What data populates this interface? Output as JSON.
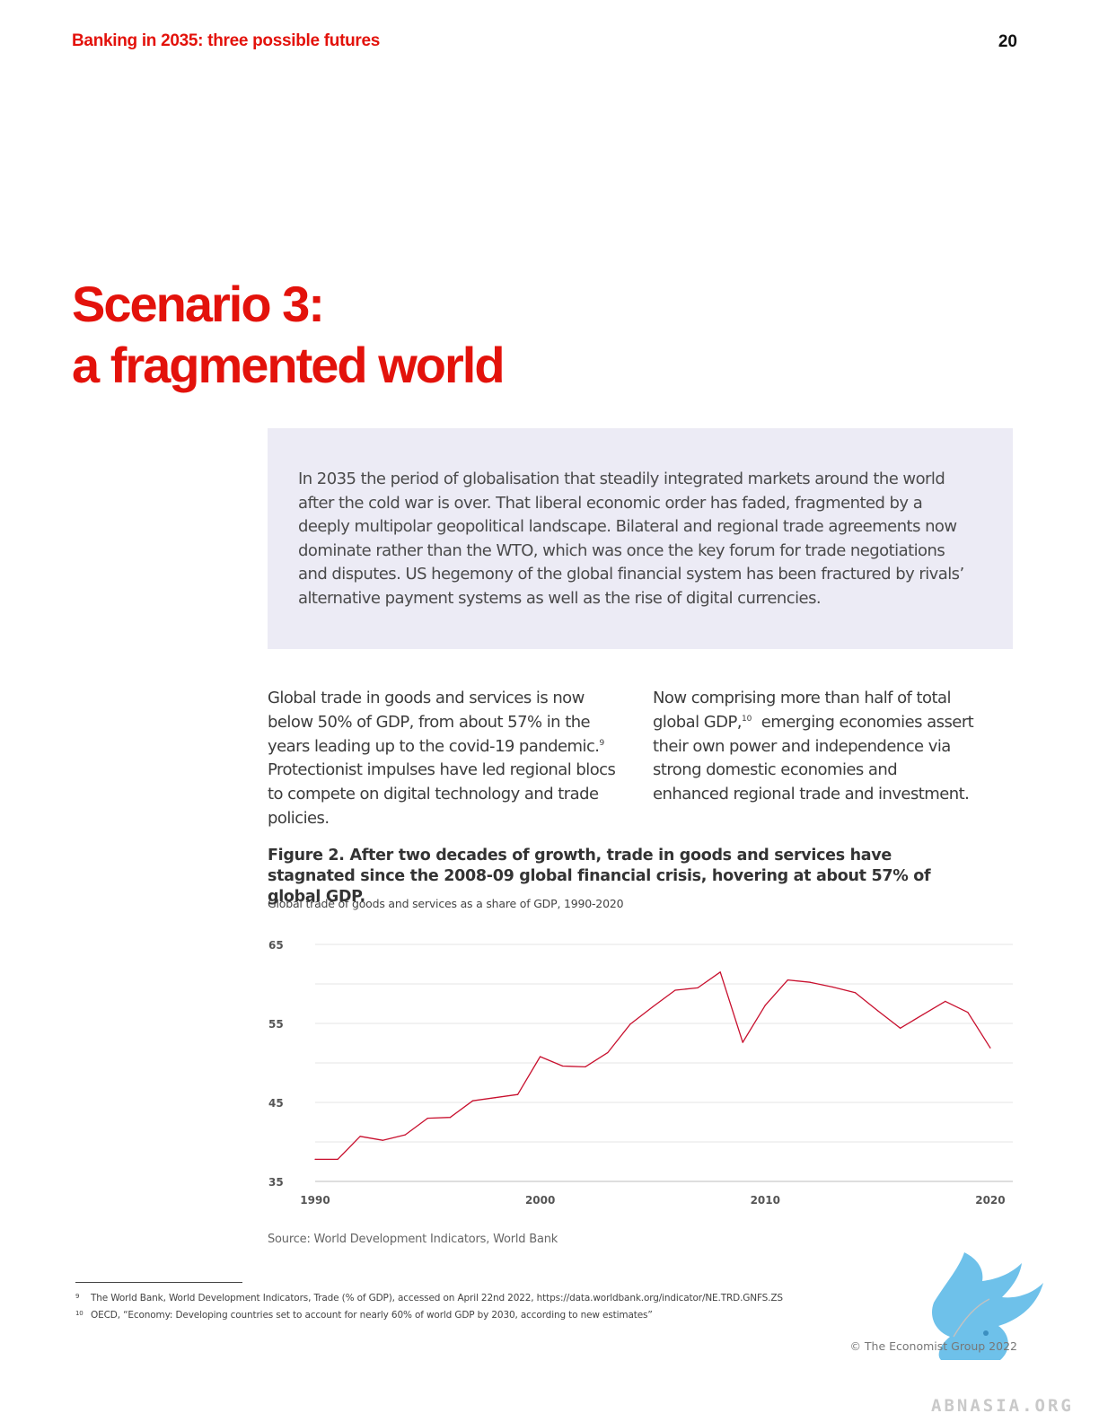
{
  "header": {
    "title": "Banking in 2035: three possible futures",
    "page_number": "20"
  },
  "scenario": {
    "title_line1": "Scenario 3:",
    "title_line2": "a fragmented world"
  },
  "intro": {
    "text": "In 2035 the period of globalisation that steadily integrated markets around the world after the cold war is over. That liberal economic order has faded, fragmented by a deeply multipolar geopolitical landscape. Bilateral and regional trade agreements now dominate rather than the WTO, which was once the key forum for trade negotiations and disputes. US hegemony of the global financial system has been fractured by rivals’ alternative payment systems as well as the rise of digital currencies."
  },
  "body": {
    "left_text_a": "Global trade in goods and services is now below 50% of GDP, from about 57% in the years leading up to the covid-19 pandemic.",
    "left_ref": "9",
    "left_text_b": " Protectionist impulses have led regional blocs to compete on digital technology and trade policies.",
    "right_text_a": "Now comprising more than half of total global GDP,",
    "right_ref": "10",
    "right_text_b": "  emerging economies assert their own power and independence via strong domestic economies and enhanced regional trade and investment."
  },
  "figure": {
    "title": "Figure 2. After two decades of growth, trade in goods and services have stagnated since the 2008-09 global financial crisis, hovering at about 57% of global GDP.",
    "subtitle": "Global trade of goods and services as a share of GDP, 1990-2020",
    "source": "Source: World Development Indicators, World Bank"
  },
  "chart_data": {
    "type": "line",
    "title": "Global trade of goods and services as a share of GDP, 1990-2020",
    "xlabel": "",
    "ylabel": "",
    "xlim": [
      1990,
      2021
    ],
    "ylim": [
      35,
      65
    ],
    "grid": true,
    "line_color": "#c8102e",
    "x_tick_labels": [
      "1990",
      "2000",
      "2010",
      "2020"
    ],
    "x_ticks": [
      1990,
      2000,
      2010,
      2020
    ],
    "y_tick_labels": [
      "65",
      "55",
      "45",
      "35"
    ],
    "y_ticks": [
      65,
      55,
      45,
      35
    ],
    "gridlines": [
      35,
      40,
      45,
      50,
      55,
      60,
      65
    ],
    "series": [
      {
        "x": [
          1990,
          1991,
          1992,
          1993,
          1994,
          1995,
          1996,
          1997,
          1998,
          1999,
          2000,
          2001,
          2002,
          2003,
          2004,
          2005,
          2006,
          2007,
          2008,
          2009,
          2010,
          2011,
          2012,
          2013,
          2014,
          2015,
          2016,
          2017,
          2018,
          2019,
          2020
        ],
        "values": [
          37.8,
          37.8,
          40.7,
          40.2,
          40.9,
          43.0,
          43.1,
          45.2,
          45.6,
          46.0,
          50.8,
          49.6,
          49.5,
          51.3,
          54.9,
          57.1,
          59.2,
          59.5,
          61.5,
          52.6,
          57.3,
          60.5,
          60.2,
          59.6,
          58.9,
          56.6,
          54.4,
          56.1,
          57.8,
          56.4,
          51.9
        ]
      }
    ]
  },
  "footnotes": [
    {
      "num": "9",
      "text": "The World Bank, World Development Indicators, Trade (% of GDP), accessed on April 22nd 2022, https://data.worldbank.org/indicator/NE.TRD.GNFS.ZS"
    },
    {
      "num": "10",
      "text": "OECD, “Economy: Developing countries set to account for nearly 60% of world GDP by 2030, according to new estimates”"
    }
  ],
  "copyright": "© The Economist Group 2022",
  "watermark": {
    "text": "ABNASIA.ORG",
    "color": "#6ec1ea"
  }
}
